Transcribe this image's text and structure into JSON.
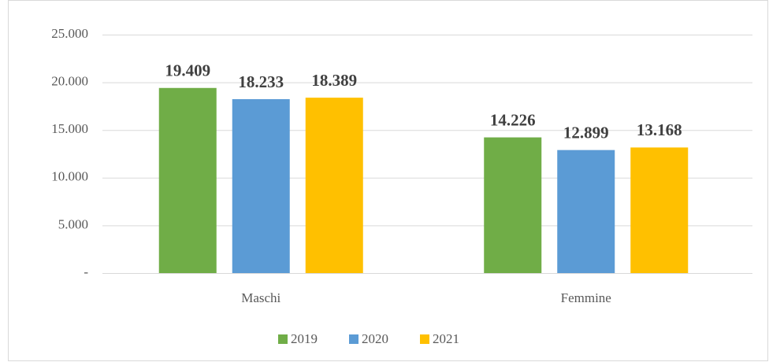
{
  "chart_data": {
    "type": "bar",
    "categories": [
      "Maschi",
      "Femmine"
    ],
    "series": [
      {
        "name": "2019",
        "color": "#70ad47",
        "values": [
          19409,
          14226
        ],
        "value_labels": [
          "19.409",
          "14.226"
        ]
      },
      {
        "name": "2020",
        "color": "#5b9bd5",
        "values": [
          18233,
          12899
        ],
        "value_labels": [
          "18.233",
          "12.899"
        ]
      },
      {
        "name": "2021",
        "color": "#ffc000",
        "values": [
          18389,
          13168
        ],
        "value_labels": [
          "18.389",
          "13.168"
        ]
      }
    ],
    "ylim": [
      0,
      25000
    ],
    "yticks": [
      {
        "value": 0,
        "label": "-"
      },
      {
        "value": 5000,
        "label": "5.000"
      },
      {
        "value": 10000,
        "label": "10.000"
      },
      {
        "value": 15000,
        "label": "15.000"
      },
      {
        "value": 20000,
        "label": "20.000"
      },
      {
        "value": 25000,
        "label": "25.000"
      }
    ],
    "grid": true,
    "legend": "bottom"
  }
}
